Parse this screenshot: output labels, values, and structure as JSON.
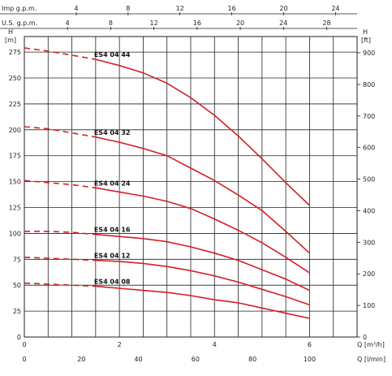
{
  "chart_data": {
    "type": "line",
    "colors": {
      "curve": "#d42027",
      "grid": "#222222"
    },
    "axes": {
      "left": {
        "label_line1": "H",
        "label_line2": "[m]",
        "min": 0,
        "max": 290,
        "ticks": [
          "0",
          "25",
          "50",
          "75",
          "100",
          "125",
          "150",
          "175",
          "200",
          "225",
          "250",
          "275"
        ]
      },
      "right": {
        "label_line1": "H",
        "label_line2": "[ft]",
        "ticks": [
          "0",
          "100",
          "200",
          "300",
          "400",
          "500",
          "600",
          "700",
          "800",
          "900"
        ]
      },
      "bottom_q_m3h": {
        "label": "Q [m³/h]",
        "min": 0,
        "max": 7,
        "ticks": [
          "0",
          "2",
          "4",
          "6"
        ]
      },
      "bottom_q_lmin": {
        "label": "Q [l/min]",
        "ticks": [
          "0",
          "20",
          "40",
          "60",
          "80",
          "100"
        ]
      },
      "top_imp_gpm": {
        "label": "Imp g.p.m.",
        "ticks": [
          "4",
          "8",
          "12",
          "16",
          "20",
          "24"
        ]
      },
      "top_us_gpm": {
        "label": "U.S. g.p.m.",
        "ticks": [
          "4",
          "8",
          "12",
          "16",
          "20",
          "24",
          "28"
        ]
      }
    },
    "grid": true,
    "series": [
      {
        "name": "ES4 04 44",
        "x": [
          0,
          0.5,
          1,
          1.5,
          2,
          2.5,
          3,
          3.5,
          4,
          4.5,
          5,
          5.5,
          6
        ],
        "y": [
          279,
          276,
          272,
          268,
          262,
          255,
          245,
          231,
          214,
          194,
          172,
          149,
          127
        ],
        "label_x": 1.5
      },
      {
        "name": "ES4 04 32",
        "x": [
          0,
          0.5,
          1,
          1.5,
          2,
          2.5,
          3,
          3.5,
          4,
          4.5,
          5,
          5.5,
          6
        ],
        "y": [
          203,
          201,
          197,
          193,
          188,
          182,
          175,
          163,
          151,
          137,
          122,
          102,
          81
        ],
        "label_x": 1.5
      },
      {
        "name": "ES4 04 24",
        "x": [
          0,
          0.5,
          1,
          1.5,
          2,
          2.5,
          3,
          3.5,
          4,
          4.5,
          5,
          5.5,
          6
        ],
        "y": [
          151,
          149,
          147,
          144,
          140,
          136,
          131,
          124,
          114,
          103,
          91,
          77,
          62
        ],
        "label_x": 1.5
      },
      {
        "name": "ES4 04 16",
        "x": [
          0,
          0.5,
          1,
          1.5,
          2,
          2.5,
          3,
          3.5,
          4,
          4.5,
          5,
          5.5,
          6
        ],
        "y": [
          102,
          102,
          101,
          99,
          97,
          95,
          92,
          87,
          81,
          74,
          65,
          56,
          45
        ],
        "label_x": 1.5
      },
      {
        "name": "ES4 04 12",
        "x": [
          0,
          0.5,
          1,
          1.5,
          2,
          2.5,
          3,
          3.5,
          4,
          4.5,
          5,
          5.5,
          6
        ],
        "y": [
          77,
          76,
          75,
          74,
          73,
          71,
          68,
          64,
          59,
          53,
          46,
          39,
          31
        ],
        "label_x": 1.5
      },
      {
        "name": "ES4 04 08",
        "x": [
          0,
          0.5,
          1,
          1.5,
          2,
          2.5,
          3,
          3.5,
          4,
          4.5,
          5,
          5.5,
          6
        ],
        "y": [
          52,
          51,
          50,
          49,
          47,
          45,
          43,
          40,
          36,
          33,
          28,
          23,
          18
        ],
        "label_x": 1.5
      }
    ],
    "dashed_until_x": 1.5
  }
}
